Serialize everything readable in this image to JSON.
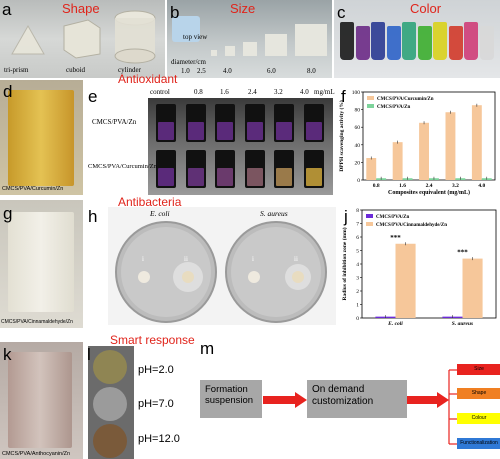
{
  "panels": {
    "a": {
      "label": "a",
      "title": "Shape",
      "items": [
        "tri-prism",
        "cuboid",
        "cylinder"
      ]
    },
    "b": {
      "label": "b",
      "title": "Size",
      "top_view": "top view",
      "diam_label": "diameter/cm",
      "diams": [
        "1.0",
        "2.5",
        "4.0",
        "6.0",
        "8.0"
      ]
    },
    "c": {
      "label": "c",
      "title": "Color",
      "colors": [
        "#1a1a1a",
        "#6b2a86",
        "#2a3a92",
        "#2d63c8",
        "#2fa37a",
        "#3cae2f",
        "#d9d21c",
        "#d23a2a",
        "#cf3d78",
        "#d8d8d8"
      ]
    },
    "d": {
      "label": "d",
      "caption": "CMCS/PVA/Curcumin/Zn"
    },
    "e": {
      "label": "e",
      "title": "Antioxidant",
      "concs": [
        "control",
        "0.8",
        "1.6",
        "2.4",
        "3.2",
        "4.0"
      ],
      "unit": "mg/mL",
      "row1": "CMCS/PVA/Zn",
      "row2": "CMCS/PVA/Curcumin/Zn",
      "row1_colors": [
        "#5a2a7a",
        "#5a2a7a",
        "#5a2a7a",
        "#5b2b7b",
        "#5b2b7b",
        "#5a2a7a"
      ],
      "row2_colors": [
        "#5a2a7a",
        "#5f3075",
        "#6a3a6c",
        "#7b5560",
        "#9a7a4a",
        "#b08f35"
      ]
    },
    "f": {
      "label": "f"
    },
    "g": {
      "label": "g",
      "caption": "CMCS/PVA/Cinnamaldehyde/Zn"
    },
    "h": {
      "label": "h",
      "title": "Antibacteria",
      "plate1": "E. coli",
      "plate2": "S. aureus",
      "i": "i",
      "ii": "ii"
    },
    "j": {
      "label": "j"
    },
    "k": {
      "label": "k",
      "caption": "CMCS/PVA/Anthocyanin/Zn"
    },
    "l": {
      "label": "l",
      "title": "Smart response",
      "ph": [
        "pH=2.0",
        "pH=7.0",
        "pH=12.0"
      ],
      "ph_colors": [
        "#8f8553",
        "#9b9b9b",
        "#7a5a3a"
      ]
    },
    "m": {
      "label": "m",
      "box1": "Formation suspension",
      "box2": "On demand customization",
      "options": [
        {
          "text": "Size",
          "color": "#e8231f"
        },
        {
          "text": "Shape",
          "color": "#f07f22"
        },
        {
          "text": "Colour",
          "color": "#ffff00"
        },
        {
          "text": "Functionalization",
          "color": "#2f79d6"
        }
      ]
    }
  },
  "chart_data": [
    {
      "type": "bar",
      "categories": [
        "0.8",
        "1.6",
        "2.4",
        "3.2",
        "4.0"
      ],
      "series": [
        {
          "name": "CMCS/PVA/Curcumin/Zn",
          "values": [
            25,
            43,
            65,
            77,
            85
          ],
          "color": "#f6c79a"
        },
        {
          "name": "CMCS/PVA/Zn",
          "values": [
            2,
            2,
            2,
            2,
            2
          ],
          "color": "#7dd39b"
        }
      ],
      "xlabel": "Composites equivalent (mg/mL)",
      "ylabel": "DPPH scavenging activity (%)",
      "ylim": [
        0,
        100
      ],
      "yticks": [
        0,
        20,
        40,
        60,
        80,
        100
      ],
      "legend": "top-left"
    },
    {
      "type": "bar",
      "categories": [
        "E. coli",
        "S. aureus"
      ],
      "series": [
        {
          "name": "CMCS/PVA/Zn",
          "values": [
            0.1,
            0.1
          ],
          "color": "#6c2bd9"
        },
        {
          "name": "CMCS/PVA/Cinnamaldehyde/Zn",
          "values": [
            5.5,
            4.4
          ],
          "color": "#f6c79a"
        }
      ],
      "xlabel": "",
      "ylabel": "Radius of inhibition zone (mm)",
      "ylim": [
        0,
        8
      ],
      "yticks": [
        0,
        1,
        2,
        3,
        4,
        5,
        6,
        7,
        8
      ],
      "annotations": [
        "***",
        "***"
      ],
      "legend": "top-left"
    }
  ]
}
